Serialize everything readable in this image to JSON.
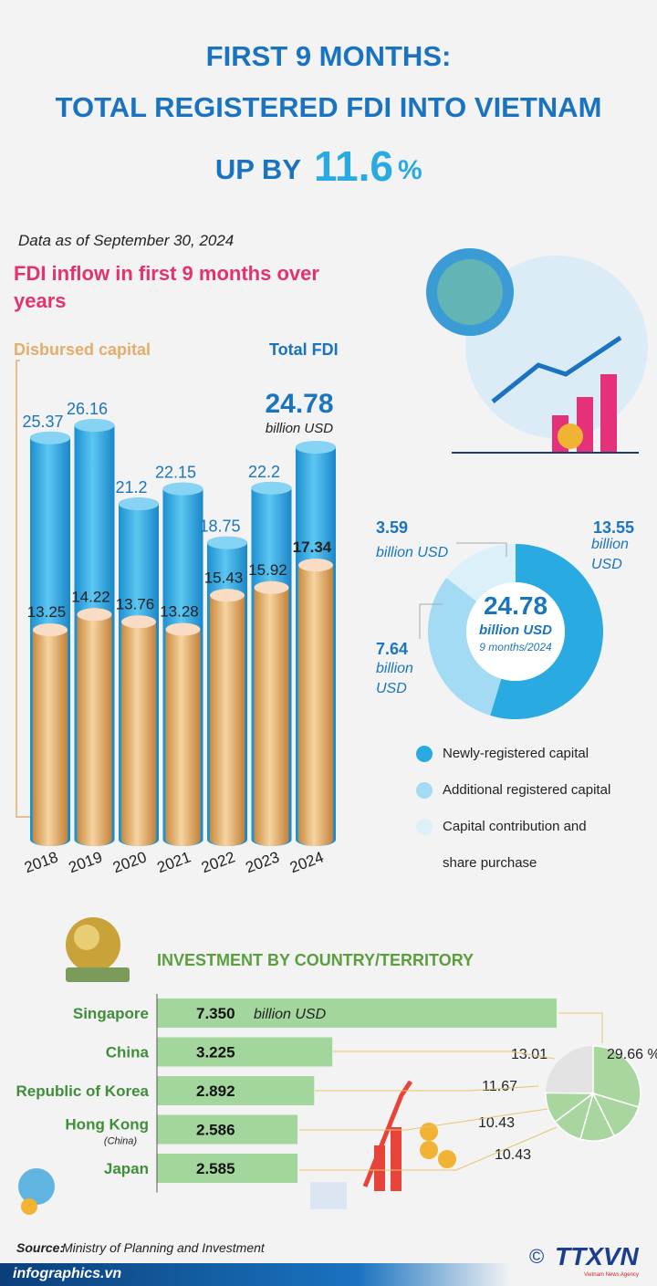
{
  "header": {
    "line1": "FIRST 9 MONTHS:",
    "line2": "TOTAL REGISTERED FDI INTO VIETNAM",
    "line3": "UP BY",
    "growth": 11.6,
    "growth_unit": "%"
  },
  "note": "Data as of September 30, 2024",
  "chart_data": [
    {
      "type": "cylinder",
      "title": "FDI inflow in first 9 months over years",
      "categories": [
        "2018",
        "2019",
        "2020",
        "2021",
        "2022",
        "2023",
        "2024"
      ],
      "series": [
        {
          "name": "Total FDI",
          "color": "#29abe2",
          "values": [
            25.37,
            26.16,
            21.2,
            22.15,
            18.75,
            22.2,
            24.78
          ]
        },
        {
          "name": "Disbursed capital",
          "color": "#e3ad6c",
          "values": [
            13.25,
            14.22,
            13.76,
            13.28,
            15.43,
            15.92,
            17.34
          ]
        }
      ],
      "unit": "billion USD"
    },
    {
      "type": "donut",
      "categories": [
        "Newly-registered capital",
        "Additional registered capital",
        "Capital contribution and share purchase"
      ],
      "values": [
        13.55,
        7.64,
        3.59
      ],
      "colors": [
        "#29abe2",
        "#a3daf4",
        "#dcf0fa"
      ],
      "unit": "billion USD",
      "total": 24.78,
      "period": "9 months/2024"
    },
    {
      "type": "hbar",
      "title": "INVESTMENT BY COUNTRY/TERRITORY",
      "categories": [
        "Singapore",
        "China",
        "Republic of Korea",
        "Hong Kong",
        "Japan"
      ],
      "category_notes": [
        null,
        null,
        null,
        "(China)",
        null
      ],
      "values": [
        7.35,
        3.225,
        2.892,
        2.586,
        2.585
      ],
      "value_labels": [
        "7.350",
        "3.225",
        "2.892",
        "2.586",
        "2.585"
      ],
      "unit": "billion USD",
      "color": "#a3d69c"
    },
    {
      "type": "pie",
      "values": [
        29.66,
        13.01,
        11.67,
        10.43,
        10.43
      ],
      "value_labels": [
        "29.66 %",
        "13.01",
        "11.67",
        "10.43",
        "10.43"
      ],
      "color": "#a9d69f"
    }
  ],
  "footer": {
    "source_label": "Source:",
    "source": "Ministry of Planning and Investment",
    "site": "infographics.vn",
    "logo": "TTXVN",
    "logo_sub": "Vietnam News Agency",
    "copyright": "©"
  }
}
